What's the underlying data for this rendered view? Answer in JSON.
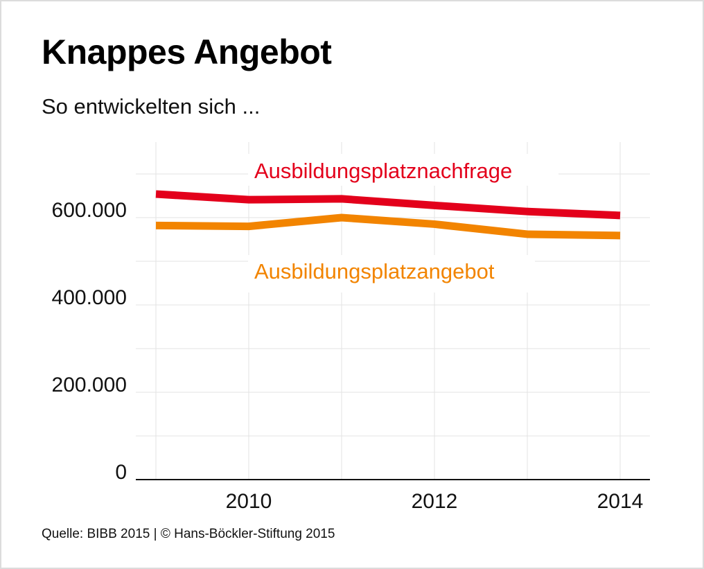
{
  "chart_data": {
    "type": "line",
    "title": "Knappes Angebot",
    "subtitle": "So entwickelten sich ...",
    "x": [
      2009,
      2010,
      2011,
      2012,
      2013,
      2014
    ],
    "x_tick_labels": [
      "2010",
      "2012",
      "2014"
    ],
    "y_tick_labels": [
      "0",
      "200.000",
      "400.000",
      "600.000"
    ],
    "ylim": [
      0,
      780000
    ],
    "grid": true,
    "series": [
      {
        "name": "Ausbildungsplatznachfrage",
        "color": "#e3001b",
        "values": [
          654000,
          641000,
          643000,
          628000,
          614000,
          605000
        ]
      },
      {
        "name": "Ausbildungsplatzangebot",
        "color": "#f28400",
        "values": [
          582000,
          580000,
          600000,
          585000,
          562000,
          559000
        ]
      }
    ],
    "source": "Quelle: BIBB 2015 | © Hans-Böckler-Stiftung 2015"
  }
}
